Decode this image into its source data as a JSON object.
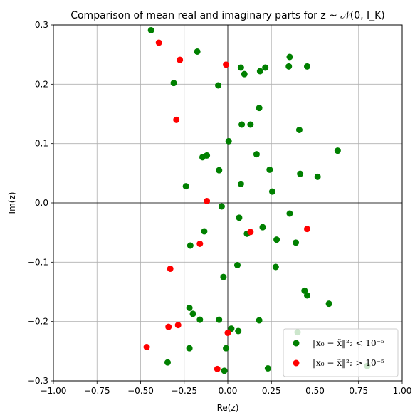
{
  "chart_data": {
    "type": "scatter",
    "title": "Comparison of mean real and imaginary parts for z ~ 𝒩(0, I_K)",
    "xlabel": "Re(z)",
    "ylabel": "Im(z)",
    "xlim": [
      -1.0,
      1.0
    ],
    "ylim": [
      -0.3,
      0.3
    ],
    "xticks": [
      -1.0,
      -0.75,
      -0.5,
      -0.25,
      0.0,
      0.25,
      0.5,
      0.75,
      1.0
    ],
    "xtick_labels": [
      "−1.00",
      "−0.75",
      "−0.50",
      "−0.25",
      "0.00",
      "0.25",
      "0.50",
      "0.75",
      "1.00"
    ],
    "yticks": [
      -0.3,
      -0.2,
      -0.1,
      0.0,
      0.1,
      0.2,
      0.3
    ],
    "ytick_labels": [
      "−0.3",
      "−0.2",
      "−0.1",
      "0.0",
      "0.1",
      "0.2",
      "0.3"
    ],
    "grid": true,
    "zero_lines": true,
    "legend_position": "lower-right",
    "series": [
      {
        "name": "‖x₀ − x̃‖²₂ < 10⁻⁵",
        "color": "#008000",
        "points": [
          [
            -0.44,
            0.291
          ],
          [
            -0.175,
            0.255
          ],
          [
            -0.31,
            0.202
          ],
          [
            -0.055,
            0.198
          ],
          [
            0.075,
            0.228
          ],
          [
            0.095,
            0.217
          ],
          [
            0.185,
            0.222
          ],
          [
            0.215,
            0.228
          ],
          [
            0.355,
            0.246
          ],
          [
            0.35,
            0.23
          ],
          [
            0.455,
            0.23
          ],
          [
            0.18,
            0.16
          ],
          [
            0.08,
            0.132
          ],
          [
            0.13,
            0.132
          ],
          [
            0.005,
            0.104
          ],
          [
            0.41,
            0.123
          ],
          [
            0.63,
            0.088
          ],
          [
            0.165,
            0.082
          ],
          [
            -0.145,
            0.077
          ],
          [
            -0.12,
            0.08
          ],
          [
            -0.05,
            0.055
          ],
          [
            0.24,
            0.056
          ],
          [
            0.415,
            0.049
          ],
          [
            0.515,
            0.044
          ],
          [
            0.075,
            0.032
          ],
          [
            -0.24,
            0.028
          ],
          [
            0.255,
            0.019
          ],
          [
            -0.035,
            -0.006
          ],
          [
            0.355,
            -0.018
          ],
          [
            0.065,
            -0.025
          ],
          [
            0.2,
            -0.041
          ],
          [
            -0.135,
            -0.048
          ],
          [
            0.11,
            -0.052
          ],
          [
            0.28,
            -0.062
          ],
          [
            0.39,
            -0.067
          ],
          [
            -0.215,
            -0.072
          ],
          [
            0.055,
            -0.105
          ],
          [
            0.275,
            -0.108
          ],
          [
            -0.025,
            -0.125
          ],
          [
            0.44,
            -0.148
          ],
          [
            0.455,
            -0.156
          ],
          [
            0.58,
            -0.17
          ],
          [
            -0.22,
            -0.177
          ],
          [
            -0.2,
            -0.187
          ],
          [
            -0.16,
            -0.197
          ],
          [
            -0.05,
            -0.197
          ],
          [
            0.18,
            -0.198
          ],
          [
            0.02,
            -0.212
          ],
          [
            0.06,
            -0.216
          ],
          [
            0.4,
            -0.218
          ],
          [
            -0.22,
            -0.245
          ],
          [
            -0.01,
            -0.245
          ],
          [
            -0.345,
            -0.269
          ],
          [
            0.23,
            -0.279
          ],
          [
            -0.02,
            -0.283
          ],
          [
            0.8,
            -0.275
          ]
        ]
      },
      {
        "name": "‖x₀ − x̃‖²₂ > 10⁻⁵",
        "color": "#ff0000",
        "points": [
          [
            -0.395,
            0.27
          ],
          [
            -0.275,
            0.241
          ],
          [
            -0.01,
            0.233
          ],
          [
            -0.295,
            0.14
          ],
          [
            -0.12,
            0.003
          ],
          [
            0.13,
            -0.049
          ],
          [
            0.455,
            -0.044
          ],
          [
            -0.16,
            -0.069
          ],
          [
            -0.33,
            -0.111
          ],
          [
            -0.285,
            -0.206
          ],
          [
            -0.34,
            -0.209
          ],
          [
            0.0,
            -0.219
          ],
          [
            -0.465,
            -0.243
          ],
          [
            -0.06,
            -0.28
          ]
        ]
      }
    ]
  }
}
